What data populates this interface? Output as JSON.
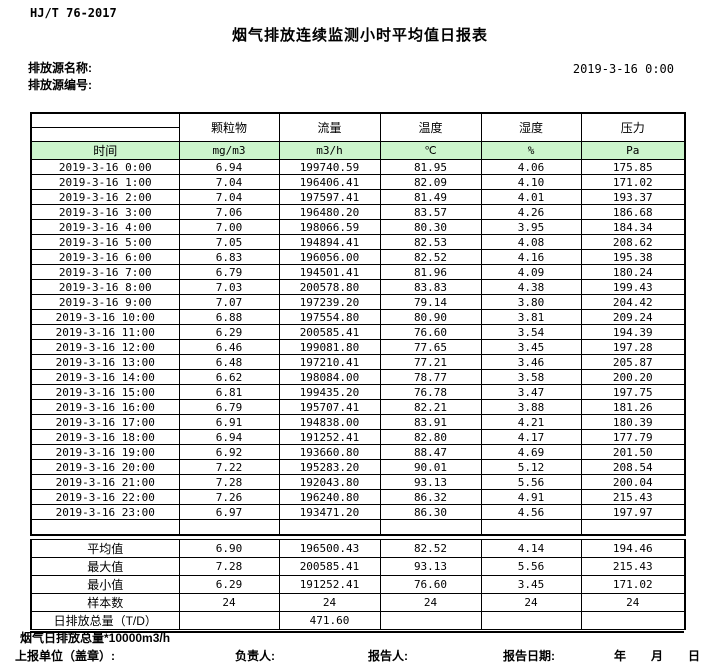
{
  "header": {
    "standard_no": "HJ/T  76-2017",
    "title": "烟气排放连续监测小时平均值日报表",
    "source_name_label": "排放源名称:",
    "source_code_label": "排放源编号:",
    "datetime": "2019-3-16  0:00"
  },
  "table": {
    "time_header": "时间",
    "columns": [
      {
        "label": "颗粒物",
        "unit": "mg/m3"
      },
      {
        "label": "流量",
        "unit": "m3/h"
      },
      {
        "label": "温度",
        "unit": "℃"
      },
      {
        "label": "湿度",
        "unit": "%"
      },
      {
        "label": "压力",
        "unit": "Pa"
      }
    ],
    "rows": [
      {
        "time": "2019-3-16  0:00",
        "values": [
          "6.94",
          "199740.59",
          "81.95",
          "4.06",
          "175.85"
        ]
      },
      {
        "time": "2019-3-16  1:00",
        "values": [
          "7.04",
          "196406.41",
          "82.09",
          "4.10",
          "171.02"
        ]
      },
      {
        "time": "2019-3-16  2:00",
        "values": [
          "7.04",
          "197597.41",
          "81.49",
          "4.01",
          "193.37"
        ]
      },
      {
        "time": "2019-3-16  3:00",
        "values": [
          "7.06",
          "196480.20",
          "83.57",
          "4.26",
          "186.68"
        ]
      },
      {
        "time": "2019-3-16  4:00",
        "values": [
          "7.00",
          "198066.59",
          "80.30",
          "3.95",
          "184.34"
        ]
      },
      {
        "time": "2019-3-16  5:00",
        "values": [
          "7.05",
          "194894.41",
          "82.53",
          "4.08",
          "208.62"
        ]
      },
      {
        "time": "2019-3-16  6:00",
        "values": [
          "6.83",
          "196056.00",
          "82.52",
          "4.16",
          "195.38"
        ]
      },
      {
        "time": "2019-3-16  7:00",
        "values": [
          "6.79",
          "194501.41",
          "81.96",
          "4.09",
          "180.24"
        ]
      },
      {
        "time": "2019-3-16  8:00",
        "values": [
          "7.03",
          "200578.80",
          "83.83",
          "4.38",
          "199.43"
        ]
      },
      {
        "time": "2019-3-16  9:00",
        "values": [
          "7.07",
          "197239.20",
          "79.14",
          "3.80",
          "204.42"
        ]
      },
      {
        "time": "2019-3-16 10:00",
        "values": [
          "6.88",
          "197554.80",
          "80.90",
          "3.81",
          "209.24"
        ]
      },
      {
        "time": "2019-3-16 11:00",
        "values": [
          "6.29",
          "200585.41",
          "76.60",
          "3.54",
          "194.39"
        ]
      },
      {
        "time": "2019-3-16 12:00",
        "values": [
          "6.46",
          "199081.80",
          "77.65",
          "3.45",
          "197.28"
        ]
      },
      {
        "time": "2019-3-16 13:00",
        "values": [
          "6.48",
          "197210.41",
          "77.21",
          "3.46",
          "205.87"
        ]
      },
      {
        "time": "2019-3-16 14:00",
        "values": [
          "6.62",
          "198084.00",
          "78.77",
          "3.58",
          "200.20"
        ]
      },
      {
        "time": "2019-3-16 15:00",
        "values": [
          "6.81",
          "199435.20",
          "76.78",
          "3.47",
          "197.75"
        ]
      },
      {
        "time": "2019-3-16 16:00",
        "values": [
          "6.79",
          "195707.41",
          "82.21",
          "3.88",
          "181.26"
        ]
      },
      {
        "time": "2019-3-16 17:00",
        "values": [
          "6.91",
          "194838.00",
          "83.91",
          "4.21",
          "180.39"
        ]
      },
      {
        "time": "2019-3-16 18:00",
        "values": [
          "6.94",
          "191252.41",
          "82.80",
          "4.17",
          "177.79"
        ]
      },
      {
        "time": "2019-3-16 19:00",
        "values": [
          "6.92",
          "193660.80",
          "88.47",
          "4.69",
          "201.50"
        ]
      },
      {
        "time": "2019-3-16 20:00",
        "values": [
          "7.22",
          "195283.20",
          "90.01",
          "5.12",
          "208.54"
        ]
      },
      {
        "time": "2019-3-16 21:00",
        "values": [
          "7.28",
          "192043.80",
          "93.13",
          "5.56",
          "200.04"
        ]
      },
      {
        "time": "2019-3-16 22:00",
        "values": [
          "7.26",
          "196240.80",
          "86.32",
          "4.91",
          "215.43"
        ]
      },
      {
        "time": "2019-3-16 23:00",
        "values": [
          "6.97",
          "193471.20",
          "86.30",
          "4.56",
          "197.97"
        ]
      }
    ],
    "summary": [
      {
        "label": "平均值",
        "values": [
          "6.90",
          "196500.43",
          "82.52",
          "4.14",
          "194.46"
        ]
      },
      {
        "label": "最大值",
        "values": [
          "7.28",
          "200585.41",
          "93.13",
          "5.56",
          "215.43"
        ]
      },
      {
        "label": "最小值",
        "values": [
          "6.29",
          "191252.41",
          "76.60",
          "3.45",
          "171.02"
        ]
      },
      {
        "label": "样本数",
        "values": [
          "24",
          "24",
          "24",
          "24",
          "24"
        ]
      },
      {
        "label": "日排放总量（T/D）",
        "values": [
          "",
          "471.60",
          "",
          "",
          ""
        ]
      }
    ]
  },
  "footer": {
    "note": "烟气日排放总量*10000m3/h",
    "report_unit_label": "上报单位（盖章）:",
    "responsible_label": "负责人:",
    "reporter_label": "报告人:",
    "report_date_label": "报告日期:",
    "year_label": "年",
    "month_label": "月",
    "day_label": "日"
  }
}
